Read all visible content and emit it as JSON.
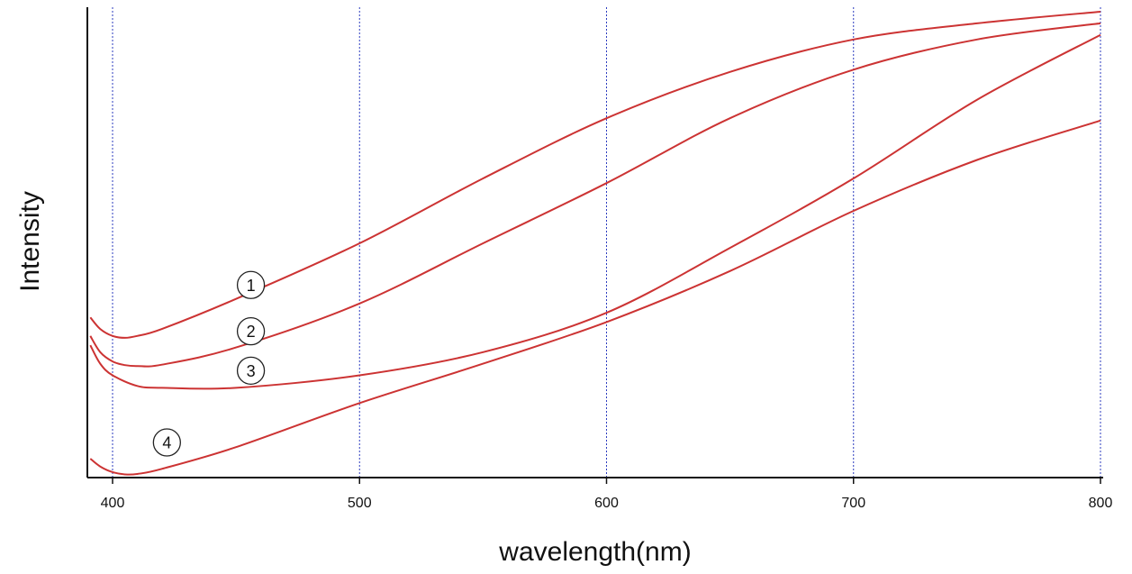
{
  "chart_data": {
    "type": "line",
    "xlabel": "wavelength(nm)",
    "ylabel": "Intensity",
    "x_ticks": [
      "400",
      "500",
      "600",
      "700",
      "800"
    ],
    "xlim": [
      390,
      800
    ],
    "ylim": [
      0,
      100
    ],
    "grid": "vertical dotted lines at x ticks",
    "colors": {
      "series": "#cc3333",
      "grid": "#2b3bbf",
      "axis": "#111111"
    },
    "series": [
      {
        "name": "1",
        "x": [
          391,
          395,
          400,
          405,
          410,
          420,
          450,
          500,
          550,
          600,
          650,
          700,
          750,
          800
        ],
        "y": [
          34,
          31.5,
          30,
          29.6,
          30,
          31.5,
          38,
          50,
          64,
          77,
          87,
          94,
          97.5,
          100
        ]
      },
      {
        "name": "2",
        "x": [
          391,
          395,
          400,
          405,
          410,
          420,
          450,
          500,
          550,
          600,
          650,
          700,
          750,
          800
        ],
        "y": [
          30,
          26.5,
          24.5,
          23.7,
          23.5,
          23.8,
          27.5,
          37,
          50,
          63,
          77,
          87.5,
          94,
          97.5
        ]
      },
      {
        "name": "3",
        "x": [
          391,
          395,
          400,
          410,
          420,
          450,
          500,
          550,
          600,
          650,
          700,
          750,
          800
        ],
        "y": [
          28,
          24,
          21.5,
          19.2,
          18.8,
          18.8,
          21.5,
          26.5,
          35,
          49,
          64,
          81,
          95
        ]
      },
      {
        "name": "4",
        "x": [
          391,
          395,
          400,
          405,
          410,
          420,
          450,
          500,
          550,
          600,
          650,
          700,
          750,
          800
        ],
        "y": [
          3.5,
          1.8,
          0.6,
          0.1,
          0.2,
          1.3,
          6,
          15.5,
          24,
          33,
          44,
          57,
          68,
          76.5
        ]
      }
    ],
    "annotations": [
      {
        "text": "1",
        "x": 456,
        "y": 41
      },
      {
        "text": "2",
        "x": 456,
        "y": 31
      },
      {
        "text": "3",
        "x": 456,
        "y": 22.5
      },
      {
        "text": "4",
        "x": 422,
        "y": 7
      }
    ]
  }
}
